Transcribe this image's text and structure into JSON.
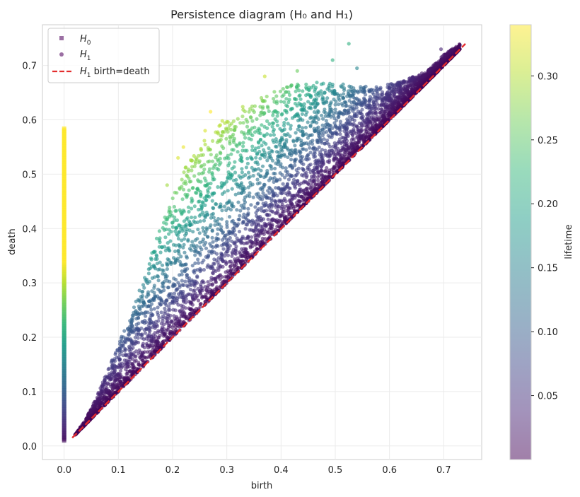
{
  "chart_data": {
    "type": "scatter",
    "title": "Persistence diagram (H₀ and H₁)",
    "xlabel": "birth",
    "ylabel": "death",
    "xlim": [
      -0.04,
      0.77
    ],
    "ylim": [
      -0.025,
      0.775
    ],
    "x_ticks": [
      "0.0",
      "0.1",
      "0.2",
      "0.3",
      "0.4",
      "0.5",
      "0.6",
      "0.7"
    ],
    "y_ticks": [
      "0.0",
      "0.1",
      "0.2",
      "0.3",
      "0.4",
      "0.5",
      "0.6",
      "0.7"
    ],
    "grid": true,
    "legend_position": "upper-left",
    "series": [
      {
        "name": "H₀",
        "marker": "square",
        "description_values": {
          "birth": 0.0,
          "death_min": 0.01,
          "death_max": 0.585
        }
      },
      {
        "name": "H₁",
        "marker": "circle",
        "upper_envelope": [
          [
            0.02,
            0.02
          ],
          [
            0.04,
            0.05
          ],
          [
            0.06,
            0.09
          ],
          [
            0.08,
            0.14
          ],
          [
            0.1,
            0.19
          ],
          [
            0.12,
            0.235
          ],
          [
            0.14,
            0.29
          ],
          [
            0.16,
            0.35
          ],
          [
            0.18,
            0.41
          ],
          [
            0.2,
            0.46
          ],
          [
            0.22,
            0.51
          ],
          [
            0.25,
            0.55
          ],
          [
            0.28,
            0.59
          ],
          [
            0.32,
            0.62
          ],
          [
            0.37,
            0.645
          ],
          [
            0.42,
            0.665
          ],
          [
            0.47,
            0.67
          ],
          [
            0.52,
            0.665
          ],
          [
            0.57,
            0.66
          ],
          [
            0.62,
            0.67
          ],
          [
            0.67,
            0.69
          ],
          [
            0.7,
            0.72
          ],
          [
            0.73,
            0.74
          ]
        ],
        "outliers": [
          [
            0.525,
            0.74
          ],
          [
            0.495,
            0.71
          ],
          [
            0.54,
            0.695
          ],
          [
            0.43,
            0.69
          ],
          [
            0.37,
            0.68
          ],
          [
            0.27,
            0.615
          ],
          [
            0.695,
            0.73
          ],
          [
            0.22,
            0.55
          ],
          [
            0.21,
            0.53
          ],
          [
            0.19,
            0.48
          ],
          [
            0.26,
            0.58
          ]
        ]
      },
      {
        "name": "H₁ birth=death",
        "style": "dashed",
        "color": "#e32d2d",
        "x": [
          0.015,
          0.74
        ],
        "y": [
          0.015,
          0.74
        ]
      }
    ],
    "legend": [
      {
        "symbol": "H",
        "sub": "0",
        "suffix": ""
      },
      {
        "symbol": "H",
        "sub": "1",
        "suffix": ""
      },
      {
        "symbol": "H",
        "sub": "1",
        "suffix": " birth=death"
      }
    ],
    "colorbar": {
      "label": "lifetime",
      "colormap": "viridis",
      "alpha": 0.5,
      "range": [
        0.0,
        0.34
      ],
      "ticks": [
        "0.05",
        "0.10",
        "0.15",
        "0.20",
        "0.25",
        "0.30"
      ]
    },
    "colors": {
      "viridis": [
        "#440154",
        "#482878",
        "#3e4989",
        "#31688e",
        "#26828e",
        "#1f9e89",
        "#35b779",
        "#6ece58",
        "#b5de2b",
        "#fde725"
      ],
      "diagonal": "#e32d2d",
      "legend_h0": "#9b6fa3",
      "legend_h1": "#9b6fa3"
    }
  }
}
